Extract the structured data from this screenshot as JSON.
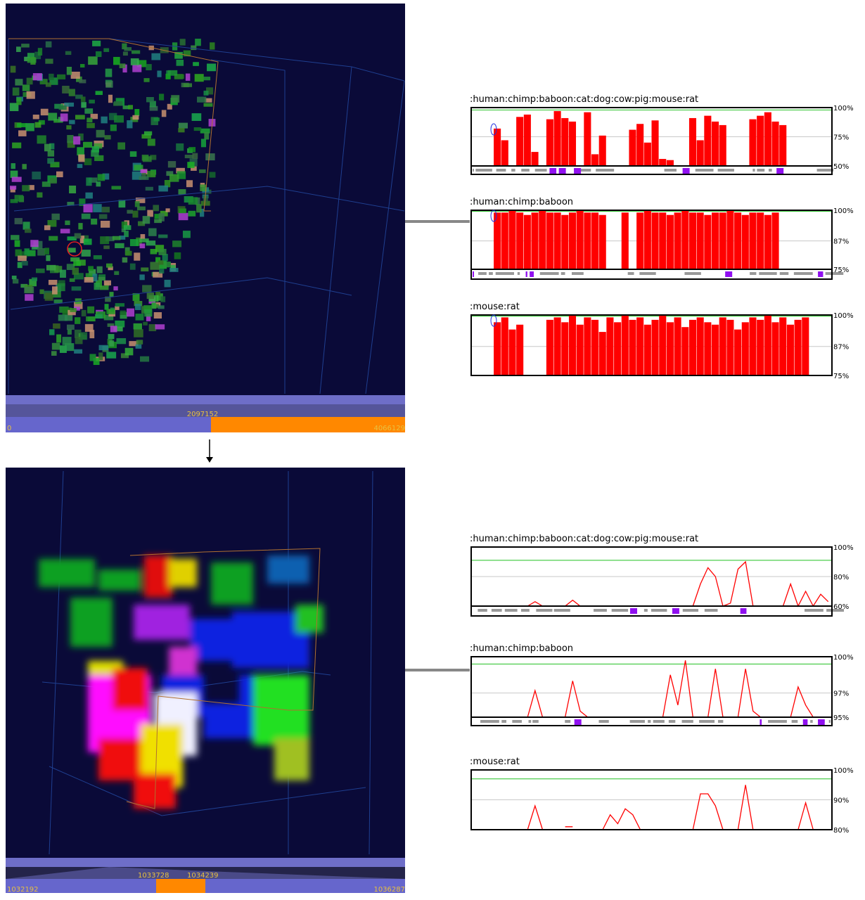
{
  "views": [
    {
      "slider": {
        "center": 2097152,
        "start": 0,
        "end": 4066129
      }
    },
    {
      "slider": {
        "left": 1033728,
        "right": 1034239,
        "start": 1032192,
        "end": 1036287
      }
    }
  ],
  "plots": [
    {
      "title": ":human:chimp:baboon:cat:dog:cow:pig:mouse:rat",
      "style": "bar",
      "ylim": [
        50,
        100
      ],
      "threshold": 98,
      "yticks": [
        {
          "value": 100,
          "label": "100%"
        },
        {
          "value": 75,
          "label": "75%"
        },
        {
          "value": 50,
          "label": "50%"
        }
      ],
      "values": [
        null,
        null,
        null,
        82,
        72,
        null,
        92,
        94,
        62,
        null,
        90,
        97,
        91,
        88,
        null,
        96,
        60,
        76,
        null,
        null,
        null,
        81,
        86,
        70,
        89,
        56,
        55,
        null,
        null,
        91,
        72,
        93,
        88,
        85,
        null,
        null,
        null,
        90,
        93,
        96,
        88,
        85,
        null,
        null,
        null,
        null,
        null,
        null
      ]
    },
    {
      "title": ":human:chimp:baboon",
      "style": "bar",
      "ylim": [
        75,
        100
      ],
      "threshold": 99.5,
      "yticks": [
        {
          "value": 100,
          "label": "100%"
        },
        {
          "value": 87,
          "label": "87%"
        },
        {
          "value": 75,
          "label": "75%"
        }
      ],
      "values": [
        null,
        null,
        null,
        99,
        99,
        100,
        99,
        98,
        99,
        100,
        99,
        99,
        98,
        99,
        100,
        99,
        99,
        98,
        null,
        null,
        99,
        null,
        99,
        100,
        99,
        99,
        98,
        99,
        100,
        99,
        99,
        98,
        99,
        99,
        100,
        99,
        98,
        99,
        99,
        98,
        99,
        null,
        null,
        null,
        null,
        null,
        null,
        null
      ]
    },
    {
      "title": ":mouse:rat",
      "style": "bar",
      "ylim": [
        75,
        100
      ],
      "threshold": 99.5,
      "yticks": [
        {
          "value": 100,
          "label": "100%"
        },
        {
          "value": 87,
          "label": "87%"
        },
        {
          "value": 75,
          "label": "75%"
        }
      ],
      "values": [
        null,
        null,
        null,
        97,
        99,
        94,
        96,
        null,
        null,
        null,
        98,
        99,
        97,
        100,
        96,
        99,
        98,
        93,
        99,
        97,
        100,
        98,
        99,
        96,
        98,
        100,
        97,
        99,
        95,
        98,
        99,
        97,
        96,
        99,
        98,
        94,
        97,
        99,
        98,
        100,
        97,
        99,
        96,
        98,
        99,
        null,
        null,
        null
      ]
    },
    {
      "title": ":human:chimp:baboon:cat:dog:cow:pig:mouse:rat",
      "style": "line",
      "ylim": [
        60,
        100
      ],
      "threshold": 91,
      "yticks": [
        {
          "value": 100,
          "label": "100%"
        },
        {
          "value": 80,
          "label": "80%"
        },
        {
          "value": 60,
          "label": "60%"
        }
      ],
      "values": [
        null,
        null,
        null,
        null,
        null,
        null,
        null,
        60,
        63,
        60,
        null,
        null,
        60,
        64,
        60,
        null,
        null,
        null,
        null,
        null,
        null,
        null,
        null,
        null,
        null,
        null,
        null,
        null,
        null,
        60,
        75,
        86,
        80,
        60,
        62,
        85,
        90,
        60,
        null,
        null,
        null,
        60,
        75,
        60,
        70,
        60,
        68,
        63
      ]
    },
    {
      "title": ":human:chimp:baboon",
      "style": "line",
      "ylim": [
        95,
        100
      ],
      "threshold": 99.4,
      "yticks": [
        {
          "value": 100,
          "label": "100%"
        },
        {
          "value": 97,
          "label": "97%"
        },
        {
          "value": 95,
          "label": "95%"
        }
      ],
      "values": [
        null,
        null,
        null,
        null,
        null,
        null,
        null,
        95,
        97.2,
        95,
        null,
        null,
        95,
        98,
        95.5,
        95,
        null,
        null,
        null,
        null,
        null,
        null,
        null,
        null,
        null,
        95,
        98.5,
        96,
        99.7,
        95,
        null,
        95,
        99,
        95,
        null,
        95,
        99,
        95.5,
        95,
        null,
        null,
        null,
        95,
        97.5,
        96,
        95,
        null,
        null
      ]
    },
    {
      "title": ":mouse:rat",
      "style": "line",
      "ylim": [
        80,
        100
      ],
      "threshold": 97,
      "yticks": [
        {
          "value": 100,
          "label": "100%"
        },
        {
          "value": 90,
          "label": "90%"
        },
        {
          "value": 80,
          "label": "80%"
        }
      ],
      "values": [
        null,
        null,
        null,
        null,
        null,
        null,
        null,
        80,
        88,
        80,
        null,
        null,
        81,
        81,
        null,
        null,
        null,
        80,
        85,
        82,
        87,
        85,
        80,
        null,
        null,
        null,
        null,
        null,
        null,
        80,
        92,
        92,
        88,
        80,
        null,
        80,
        95,
        80,
        null,
        null,
        null,
        null,
        null,
        80,
        89,
        80,
        null,
        85
      ]
    }
  ]
}
